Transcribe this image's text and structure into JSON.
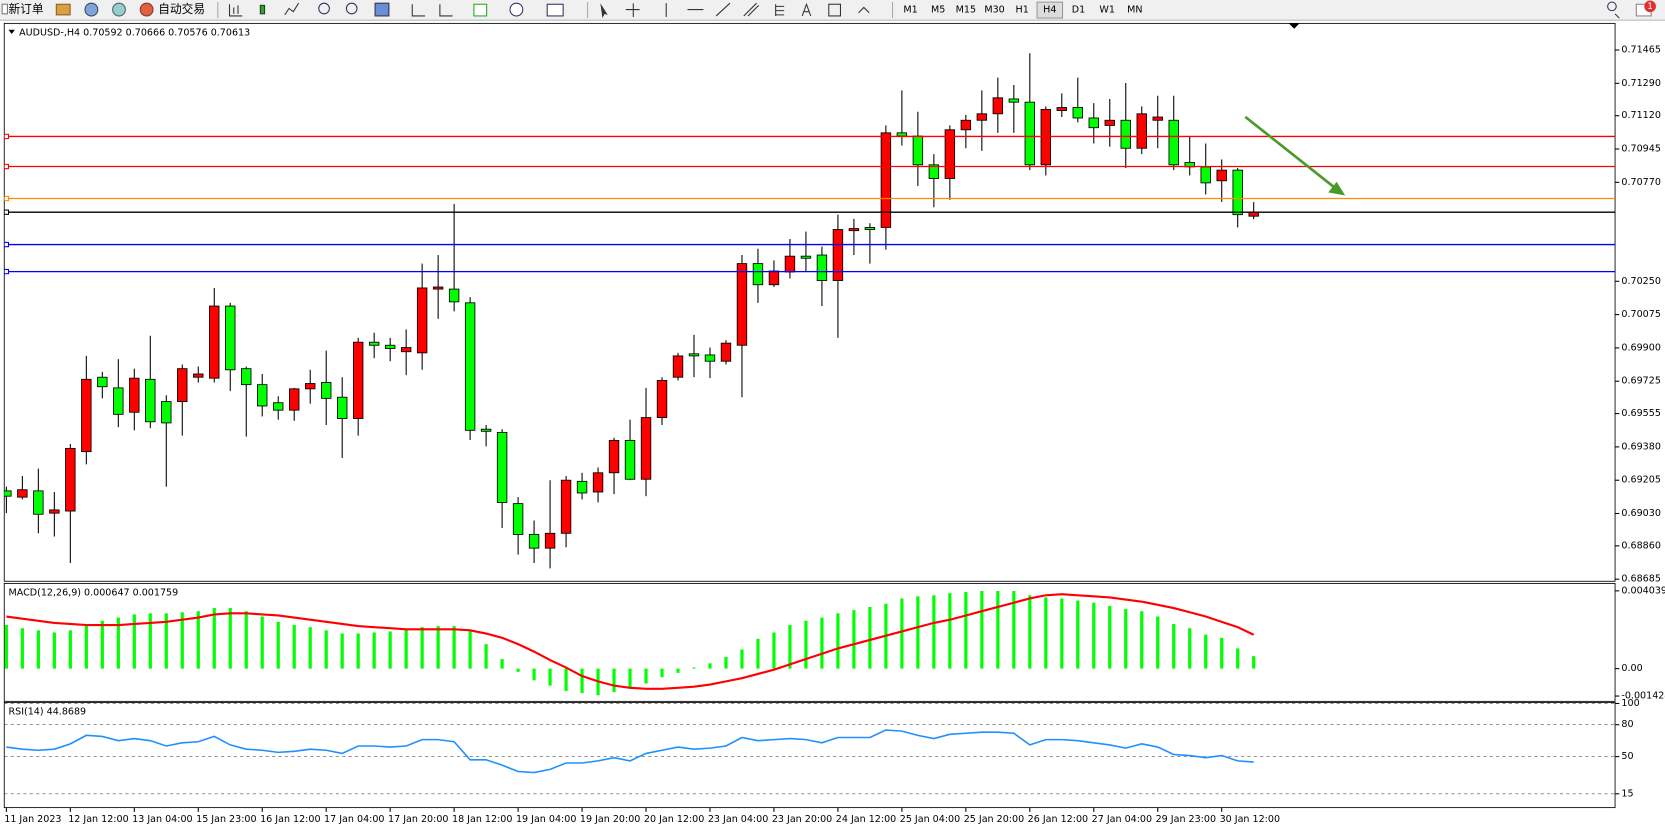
{
  "toolbar": {
    "new_order": "新订单",
    "auto_trading": "自动交易",
    "timeframes": [
      "M1",
      "M5",
      "M15",
      "M30",
      "H1",
      "H4",
      "D1",
      "W1",
      "MN"
    ],
    "notifications": "1"
  },
  "chart_data": [
    {
      "type": "candlestick",
      "title": "AUDUSD-,H4 0.70592 0.70666 0.70576 0.70613",
      "categories": [
        "11 Jan 2023",
        null,
        null,
        null,
        "12 Jan 12:00",
        null,
        null,
        null,
        "13 Jan 04:00",
        null,
        null,
        null,
        "15 Jan 23:00",
        null,
        null,
        null,
        "16 Jan 12:00",
        null,
        null,
        null,
        "17 Jan 04:00",
        null,
        null,
        null,
        "17 Jan 20:00",
        null,
        null,
        null,
        "18 Jan 12:00",
        null,
        null,
        null,
        "19 Jan 04:00",
        null,
        null,
        null,
        "19 Jan 20:00",
        null,
        null,
        null,
        "20 Jan 12:00",
        null,
        null,
        null,
        "23 Jan 04:00",
        null,
        null,
        null,
        "23 Jan 20:00",
        null,
        null,
        null,
        "24 Jan 12:00",
        null,
        null,
        null,
        "25 Jan 04:00",
        null,
        null,
        null,
        "25 Jan 20:00",
        null,
        null,
        null,
        "26 Jan 12:00",
        null,
        null,
        null,
        "27 Jan 04:00",
        null,
        null,
        null,
        "29 Jan 23:00",
        null,
        null,
        null,
        "30 Jan 12:00",
        null,
        null
      ],
      "open": [
        0.69149,
        0.69116,
        0.69149,
        0.69032,
        0.69043,
        0.69355,
        0.69746,
        0.6969,
        0.69562,
        0.69735,
        0.69618,
        0.69618,
        0.69746,
        0.69741,
        0.7012,
        0.69791,
        0.69707,
        0.69612,
        0.69573,
        0.69685,
        0.69718,
        0.69641,
        0.69529,
        0.6993,
        0.69914,
        0.6988,
        0.69874,
        0.70209,
        0.70209,
        0.70137,
        0.69473,
        0.69456,
        0.69082,
        0.6892,
        0.68848,
        0.68926,
        0.69199,
        0.69143,
        0.69244,
        0.69414,
        0.6921,
        0.69534,
        0.69746,
        0.69869,
        0.69863,
        0.6983,
        0.69914,
        0.70343,
        0.70232,
        0.70299,
        0.70382,
        0.70388,
        0.70254,
        0.70516,
        0.70533,
        0.70533,
        0.7103,
        0.71013,
        0.70862,
        0.7079,
        0.71046,
        0.71096,
        0.7113,
        0.71208,
        0.71191,
        0.70862,
        0.71147,
        0.71163,
        0.71108,
        0.71069,
        0.71096,
        0.70949,
        0.71096,
        0.71096,
        0.70874,
        0.70851,
        0.70778,
        0.70834,
        0.70592
      ],
      "high": [
        0.69171,
        0.69227,
        0.69266,
        0.69143,
        0.69395,
        0.69858,
        0.69774,
        0.69841,
        0.69791,
        0.69964,
        0.69651,
        0.69813,
        0.69802,
        0.70215,
        0.70137,
        0.69802,
        0.69763,
        0.69646,
        0.6969,
        0.69785,
        0.69886,
        0.69746,
        0.69953,
        0.6998,
        0.69953,
        0.69997,
        0.70343,
        0.70388,
        0.70656,
        0.70166,
        0.69495,
        0.69473,
        0.69116,
        0.68993,
        0.69205,
        0.69227,
        0.69244,
        0.69272,
        0.69428,
        0.69523,
        0.6969,
        0.69746,
        0.69874,
        0.69969,
        0.69902,
        0.69941,
        0.70388,
        0.70421,
        0.7036,
        0.70472,
        0.70511,
        0.70432,
        0.706,
        0.70578,
        0.70555,
        0.71069,
        0.71253,
        0.71141,
        0.70918,
        0.71069,
        0.71124,
        0.71253,
        0.7132,
        0.71281,
        0.71448,
        0.71169,
        0.71237,
        0.7132,
        0.71186,
        0.71208,
        0.71292,
        0.71169,
        0.71225,
        0.71225,
        0.71013,
        0.70974,
        0.7089,
        0.70845,
        0.70666
      ],
      "low": [
        0.69032,
        0.69104,
        0.68926,
        0.68909,
        0.6877,
        0.69288,
        0.69635,
        0.69484,
        0.69467,
        0.69478,
        0.69171,
        0.69439,
        0.69718,
        0.69718,
        0.69673,
        0.69434,
        0.6954,
        0.69523,
        0.69517,
        0.69607,
        0.69495,
        0.69322,
        0.69439,
        0.69846,
        0.6983,
        0.69757,
        0.69785,
        0.70053,
        0.70092,
        0.69416,
        0.69383,
        0.68954,
        0.68814,
        0.6877,
        0.68742,
        0.68853,
        0.69104,
        0.69088,
        0.69132,
        0.69205,
        0.69121,
        0.69495,
        0.69729,
        0.69746,
        0.69741,
        0.69813,
        0.69641,
        0.70137,
        0.7022,
        0.70265,
        0.70304,
        0.7012,
        0.69953,
        0.70388,
        0.70343,
        0.70416,
        0.70963,
        0.70751,
        0.70639,
        0.70678,
        0.70949,
        0.70935,
        0.7103,
        0.7103,
        0.70834,
        0.70806,
        0.71113,
        0.71085,
        0.70974,
        0.70957,
        0.70845,
        0.70918,
        0.70949,
        0.70834,
        0.70806,
        0.70706,
        0.70667,
        0.70533,
        0.70576
      ],
      "close": [
        0.69121,
        0.69155,
        0.69026,
        0.69049,
        0.69372,
        0.69735,
        0.69696,
        0.69551,
        0.69741,
        0.69512,
        0.69506,
        0.69791,
        0.69763,
        0.7012,
        0.69785,
        0.69707,
        0.69595,
        0.69573,
        0.69685,
        0.69713,
        0.69635,
        0.69529,
        0.6993,
        0.69914,
        0.69897,
        0.69902,
        0.70215,
        0.7022,
        0.70142,
        0.69467,
        0.69462,
        0.69088,
        0.6892,
        0.68848,
        0.68926,
        0.69205,
        0.69138,
        0.69244,
        0.69414,
        0.6921,
        0.69534,
        0.69729,
        0.69858,
        0.69858,
        0.6983,
        0.69925,
        0.70343,
        0.70232,
        0.70304,
        0.70382,
        0.70371,
        0.70254,
        0.70522,
        0.70527,
        0.70522,
        0.7103,
        0.71013,
        0.70862,
        0.7079,
        0.71046,
        0.71096,
        0.7113,
        0.71214,
        0.71191,
        0.70862,
        0.71153,
        0.71163,
        0.71108,
        0.71057,
        0.71096,
        0.70949,
        0.7113,
        0.71113,
        0.70862,
        0.70851,
        0.70767,
        0.70834,
        0.706,
        0.70613
      ],
      "up_color": "#ff0000",
      "down_color": "#00ff00",
      "ylim": [
        0.68674,
        0.71605
      ],
      "yticks": [
        0.71465,
        {
          "value": 0.7129,
          "label": "0.71290"
        },
        {
          "value": 0.7112,
          "label": "0.71120"
        },
        0.70945,
        {
          "value": 0.7077,
          "label": "0.70770"
        },
        {
          "value": 0.7025,
          "label": "0.70250"
        },
        0.70075,
        {
          "value": 0.699,
          "label": "0.69900"
        },
        0.69725,
        0.69555,
        {
          "value": 0.6938,
          "label": "0.69380"
        },
        0.69205,
        {
          "value": 0.6903,
          "label": "0.69030"
        },
        {
          "value": 0.6886,
          "label": "0.68860"
        },
        0.68685
      ],
      "levels": [
        {
          "value": 0.71011,
          "color": "#ff0000"
        },
        {
          "value": 0.70853,
          "color": "#ff0000"
        },
        {
          "value": 0.70685,
          "color": "#ff8c00"
        },
        {
          "value": 0.70613,
          "color": "#000000"
        },
        {
          "value": 0.70443,
          "color": "#0000ff"
        },
        {
          "value": 0.70301,
          "color": "#0000ff"
        }
      ]
    },
    {
      "type": "macd",
      "title": "MACD(12,26,9) 0.000647 0.001759",
      "series": [
        {
          "color": "#00ff00",
          "values": [
            0.002263,
            0.002098,
            0.001987,
            0.001877,
            0.001987,
            0.002263,
            0.002484,
            0.00265,
            0.002815,
            0.00287,
            0.00287,
            0.002926,
            0.002981,
            0.003146,
            0.003146,
            0.002981,
            0.002705,
            0.002429,
            0.002263,
            0.002153,
            0.001987,
            0.001822,
            0.001822,
            0.001877,
            0.001932,
            0.002042,
            0.002153,
            0.002208,
            0.002208,
            0.001932,
            0.00127,
            0.000497,
            -0.000166,
            -0.000607,
            -0.000883,
            -0.001159,
            -0.00127,
            -0.00138,
            -0.001214,
            -0.000994,
            -0.000773,
            -0.000442,
            -0.000221,
            5.5e-05,
            0.000276,
            0.000607,
            0.000994,
            0.001546,
            0.001877,
            0.002263,
            0.002484,
            0.00265,
            0.00287,
            0.003036,
            0.003202,
            0.003367,
            0.003643,
            0.003754,
            0.003809,
            0.003919,
            0.003974,
            0.00403,
            0.00403,
            0.00403,
            0.003809,
            0.003698,
            0.003643,
            0.003533,
            0.003422,
            0.003257,
            0.003091,
            0.002981,
            0.002705,
            0.002318,
            0.002098,
            0.001766,
            0.001601,
            0.001049,
            0.000647
          ]
        },
        {
          "color": "#ff0000",
          "values": [
            0.002705,
            0.002594,
            0.002484,
            0.002374,
            0.002318,
            0.002263,
            0.002263,
            0.002263,
            0.002318,
            0.002374,
            0.002429,
            0.002539,
            0.00265,
            0.002815,
            0.00287,
            0.00287,
            0.002815,
            0.00276,
            0.00265,
            0.002539,
            0.002429,
            0.002318,
            0.002208,
            0.002153,
            0.002098,
            0.002042,
            0.002042,
            0.002042,
            0.002042,
            0.001987,
            0.001822,
            0.001601,
            0.00127,
            0.000883,
            0.000442,
            5.5e-05,
            -0.000386,
            -0.000662,
            -0.000883,
            -0.000994,
            -0.001049,
            -0.001049,
            -0.000994,
            -0.000938,
            -0.000828,
            -0.000662,
            -0.000497,
            -0.000276,
            -5.5e-05,
            0.000221,
            0.000497,
            0.000773,
            0.001049,
            0.00127,
            0.00149,
            0.001711,
            0.001932,
            0.002153,
            0.002374,
            0.002539,
            0.00276,
            0.002981,
            0.003202,
            0.003422,
            0.003643,
            0.003809,
            0.003864,
            0.003809,
            0.003754,
            0.003698,
            0.003588,
            0.003478,
            0.003312,
            0.003146,
            0.002926,
            0.002705,
            0.002429,
            0.002153,
            0.001759
          ]
        }
      ],
      "ylim": [
        -0.001424,
        0.004039
      ],
      "yticks": [
        0.004039,
        {
          "value": 0,
          "label": "0.00"
        },
        -0.001424
      ]
    },
    {
      "type": "line",
      "title": "RSI(14) 44.8689",
      "color": "#1e90ff",
      "values": [
        59,
        57,
        56,
        57,
        62,
        70,
        69,
        65,
        67,
        65,
        60,
        63,
        64,
        69,
        61,
        57,
        56,
        54,
        55,
        57,
        56,
        53,
        60,
        60,
        59,
        60,
        66,
        66,
        64,
        47,
        47,
        42,
        36,
        35,
        38,
        44,
        44,
        46,
        49,
        46,
        53,
        56,
        59,
        57,
        58,
        60,
        68,
        65,
        66,
        67,
        66,
        63,
        68,
        68,
        68,
        75,
        74,
        70,
        67,
        71,
        72,
        73,
        73,
        72,
        61,
        66,
        66,
        65,
        63,
        61,
        58,
        62,
        59,
        52,
        51,
        49,
        51,
        46,
        44.8689
      ],
      "ylim": [
        0,
        100
      ],
      "yticks": [
        100,
        80,
        50,
        15
      ],
      "grid": true
    }
  ]
}
